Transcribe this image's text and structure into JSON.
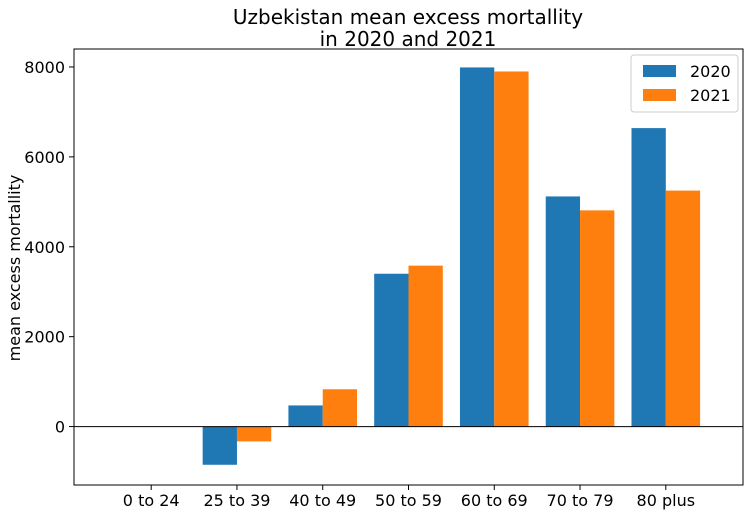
{
  "chart_data": {
    "type": "bar",
    "title_lines": [
      "Uzbekistan mean excess mortallity",
      "in 2020 and 2021"
    ],
    "xlabel": "",
    "ylabel": "mean excess mortallity",
    "categories": [
      "0 to 24",
      "25 to 39",
      "40 to 49",
      "50 to 59",
      "60 to 69",
      "70 to 79",
      "80 plus"
    ],
    "series": [
      {
        "name": "2020",
        "color": "#1f77b4",
        "values": [
          0,
          -850,
          470,
          3400,
          7990,
          5120,
          6640
        ]
      },
      {
        "name": "2021",
        "color": "#ff7f0e",
        "values": [
          0,
          -330,
          830,
          3580,
          7900,
          4810,
          5250
        ]
      }
    ],
    "ylim": [
      -1300,
      8400
    ],
    "yticks": [
      0,
      2000,
      4000,
      6000,
      8000
    ],
    "grid": false,
    "legend_position": "top-right"
  }
}
